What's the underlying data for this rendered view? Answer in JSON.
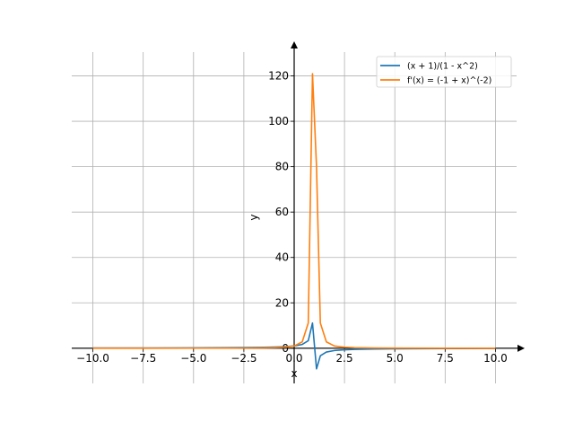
{
  "chart_data": {
    "type": "line",
    "title": "",
    "xlabel": "x",
    "ylabel": "y",
    "xlim": [
      -11.05,
      11.05
    ],
    "ylim": [
      -15.5,
      130.5
    ],
    "grid": true,
    "legend_position": "top-right",
    "x_ticks": [
      -10,
      -7.5,
      -5,
      -2.5,
      0,
      2.5,
      5,
      7.5,
      10
    ],
    "x_tick_labels": [
      "−10.0",
      "−7.5",
      "−5.0",
      "−2.5",
      "0.0",
      "2.5",
      "5.0",
      "7.5",
      "10.0"
    ],
    "y_ticks": [
      0,
      20,
      40,
      60,
      80,
      100,
      120
    ],
    "y_tick_labels": [
      "0",
      "20",
      "40",
      "60",
      "80",
      "100",
      "120"
    ],
    "series": [
      {
        "name": "(x + 1)/(1 - x^2)",
        "color": "#1f77b4",
        "points": [
          [
            -10,
            0.09
          ],
          [
            -7.5,
            0.12
          ],
          [
            -5,
            0.17
          ],
          [
            -2.5,
            0.29
          ],
          [
            -1.5,
            0.4
          ],
          [
            -1,
            0.5
          ],
          [
            -0.5,
            0.67
          ],
          [
            0,
            1.0
          ],
          [
            0.4,
            1.67
          ],
          [
            0.7,
            3.33
          ],
          [
            0.91,
            11.1
          ],
          [
            1.11,
            -9.1
          ],
          [
            1.3,
            -3.33
          ],
          [
            1.6,
            -1.67
          ],
          [
            2.0,
            -1.0
          ],
          [
            2.5,
            -0.67
          ],
          [
            3,
            -0.5
          ],
          [
            4,
            -0.33
          ],
          [
            5,
            -0.25
          ],
          [
            7.5,
            -0.15
          ],
          [
            10,
            -0.11
          ]
        ]
      },
      {
        "name": "f'(x) = (-1 + x)^(-2)",
        "color": "#ff7f0e",
        "points": [
          [
            -10,
            0.008
          ],
          [
            -7.5,
            0.014
          ],
          [
            -5,
            0.028
          ],
          [
            -2.5,
            0.08
          ],
          [
            -1.5,
            0.16
          ],
          [
            -1,
            0.25
          ],
          [
            -0.5,
            0.44
          ],
          [
            0,
            1.0
          ],
          [
            0.4,
            2.8
          ],
          [
            0.7,
            11.1
          ],
          [
            0.91,
            121
          ],
          [
            1.11,
            80
          ],
          [
            1.3,
            11.1
          ],
          [
            1.6,
            2.8
          ],
          [
            2.0,
            1.0
          ],
          [
            2.5,
            0.44
          ],
          [
            3,
            0.25
          ],
          [
            4,
            0.11
          ],
          [
            5,
            0.06
          ],
          [
            7.5,
            0.02
          ],
          [
            10,
            0.012
          ]
        ]
      }
    ]
  }
}
